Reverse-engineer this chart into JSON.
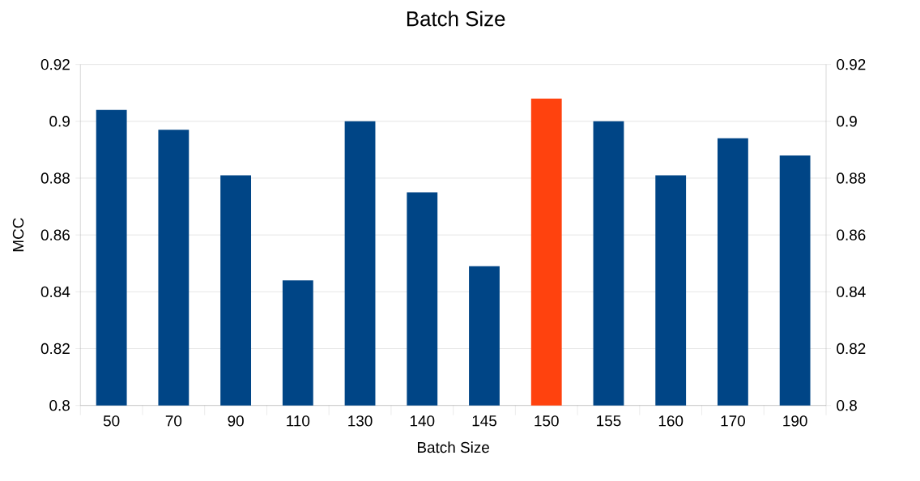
{
  "chart_data": {
    "type": "bar",
    "title": "Batch Size",
    "xlabel": "Batch Size",
    "ylabel": "MCC",
    "categories": [
      "50",
      "70",
      "90",
      "110",
      "130",
      "140",
      "145",
      "150",
      "155",
      "160",
      "170",
      "190"
    ],
    "values": [
      0.904,
      0.897,
      0.881,
      0.844,
      0.9,
      0.875,
      0.849,
      0.908,
      0.9,
      0.881,
      0.894,
      0.888
    ],
    "colors": [
      "#004586",
      "#004586",
      "#004586",
      "#004586",
      "#004586",
      "#004586",
      "#004586",
      "#ff420e",
      "#004586",
      "#004586",
      "#004586",
      "#004586"
    ],
    "ylim": [
      0.8,
      0.92
    ],
    "yticks": [
      0.8,
      0.82,
      0.84,
      0.86,
      0.88,
      0.9,
      0.92
    ],
    "y2lim": [
      0.8,
      0.92
    ],
    "y2ticks": [
      0.8,
      0.82,
      0.84,
      0.86,
      0.88,
      0.9,
      0.92
    ],
    "grid": "y"
  }
}
